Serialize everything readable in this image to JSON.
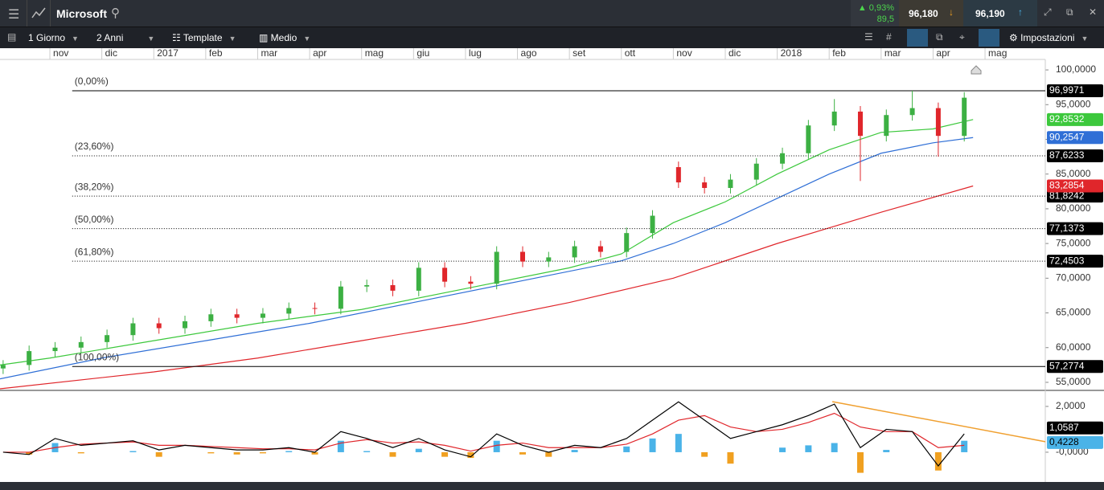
{
  "toolbar": {
    "symbol": "Microsoft",
    "change_pct": "0,93%",
    "change_abs": "89,5",
    "bid": "96,180",
    "ask": "96,190",
    "interval": "1 Giorno",
    "range": "2 Anni",
    "template": "Template",
    "size": "Medio",
    "settings": "Impostazioni"
  },
  "chart_data": {
    "type": "candlestick",
    "xlim": [
      -0.96,
      19.16
    ],
    "xticks": [
      {
        "value": 0,
        "label": "nov"
      },
      {
        "value": 1,
        "label": "dic"
      },
      {
        "value": 2,
        "label": "2017"
      },
      {
        "value": 3,
        "label": "feb"
      },
      {
        "value": 4,
        "label": "mar"
      },
      {
        "value": 5,
        "label": "apr"
      },
      {
        "value": 6,
        "label": "mag"
      },
      {
        "value": 7,
        "label": "giu"
      },
      {
        "value": 8,
        "label": "lug"
      },
      {
        "value": 9,
        "label": "ago"
      },
      {
        "value": 10,
        "label": "set"
      },
      {
        "value": 11,
        "label": "ott"
      },
      {
        "value": 12,
        "label": "nov"
      },
      {
        "value": 13,
        "label": "dic"
      },
      {
        "value": 14,
        "label": "2018"
      },
      {
        "value": 15,
        "label": "feb"
      },
      {
        "value": 16,
        "label": "mar"
      },
      {
        "value": 17,
        "label": "apr"
      },
      {
        "value": 18,
        "label": "mag"
      }
    ],
    "ylim": [
      53.84,
      103.13
    ],
    "yticks": [
      {
        "value": 55,
        "label": "55,0000"
      },
      {
        "value": 60,
        "label": "60,0000"
      },
      {
        "value": 65,
        "label": "65,0000"
      },
      {
        "value": 70,
        "label": "70,0000"
      },
      {
        "value": 75,
        "label": "75,0000"
      },
      {
        "value": 80,
        "label": "80,0000"
      },
      {
        "value": 85,
        "label": "85,0000"
      },
      {
        "value": 90,
        "label": "90,0000"
      },
      {
        "value": 95,
        "label": "95,0000"
      },
      {
        "value": 100,
        "label": "100,0000"
      }
    ],
    "up_color": "#3cb043",
    "down_color": "#e0262b",
    "x": [
      -0.9,
      -0.4,
      0.1,
      0.6,
      1.1,
      1.6,
      2.1,
      2.6,
      3.1,
      3.6,
      4.1,
      4.6,
      5.1,
      5.6,
      6.1,
      6.6,
      7.1,
      7.6,
      8.1,
      8.6,
      9.1,
      9.6,
      10.1,
      10.6,
      11.1,
      11.6,
      12.1,
      12.6,
      13.1,
      13.6,
      14.1,
      14.6,
      15.1,
      15.6,
      16.1,
      16.6,
      17.1,
      17.6
    ],
    "open": [
      57.0,
      57.5,
      59.5,
      60.0,
      60.8,
      61.8,
      63.5,
      62.8,
      63.8,
      64.8,
      64.3,
      64.9,
      65.7,
      65.6,
      68.8,
      69.0,
      68.2,
      71.5,
      69.5,
      69.2,
      73.8,
      72.4,
      73.0,
      74.6,
      73.8,
      76.5,
      86.0,
      83.8,
      83.0,
      84.2,
      86.5,
      88.0,
      92.0,
      94.0,
      90.5,
      93.5,
      94.5,
      90.5
    ],
    "high": [
      58.2,
      60.3,
      60.8,
      61.6,
      62.6,
      64.3,
      64.3,
      64.6,
      65.6,
      65.6,
      65.7,
      66.5,
      66.5,
      69.6,
      69.8,
      69.8,
      72.3,
      72.3,
      70.3,
      74.6,
      74.6,
      73.8,
      75.4,
      75.4,
      77.3,
      79.8,
      86.8,
      84.6,
      85.0,
      87.3,
      88.8,
      92.8,
      95.8,
      94.8,
      94.3,
      97.0,
      95.3,
      96.8
    ],
    "low": [
      56.2,
      56.7,
      58.7,
      59.2,
      60.0,
      61.0,
      62.0,
      62.0,
      63.0,
      63.5,
      63.5,
      64.1,
      64.8,
      64.8,
      68.0,
      67.4,
      67.4,
      68.7,
      68.4,
      68.4,
      71.6,
      71.6,
      72.2,
      73.0,
      73.0,
      75.7,
      83.0,
      82.2,
      82.2,
      83.4,
      85.7,
      87.2,
      91.2,
      84.0,
      89.7,
      92.7,
      87.5,
      89.7
    ],
    "close": [
      57.5,
      59.5,
      60.0,
      60.8,
      61.8,
      63.5,
      62.8,
      63.8,
      64.8,
      64.3,
      64.9,
      65.7,
      65.6,
      68.8,
      69.0,
      68.2,
      71.5,
      69.5,
      69.2,
      73.8,
      72.4,
      73.0,
      74.6,
      73.8,
      76.5,
      79.0,
      83.8,
      83.0,
      84.2,
      86.5,
      88.0,
      92.0,
      94.0,
      90.5,
      93.5,
      94.5,
      90.5,
      96.0
    ],
    "moving_averages": [
      {
        "color": "#3cc83c",
        "x": [
          -0.96,
          0,
          2,
          4,
          6,
          8,
          10,
          11,
          12,
          13,
          14,
          15,
          16,
          17,
          17.77
        ],
        "values": [
          57.5,
          58.5,
          61,
          63.5,
          65.5,
          68.5,
          71.5,
          73.5,
          78,
          81,
          85,
          88.5,
          91,
          91.5,
          92.8532
        ],
        "last": {
          "value": 92.8532,
          "label": "92,8532"
        }
      },
      {
        "color": "#2f6fd6",
        "x": [
          -0.96,
          1,
          3,
          5,
          7,
          9,
          11,
          12,
          13,
          14,
          15,
          16,
          17,
          17.77
        ],
        "values": [
          55.5,
          58.5,
          61,
          63.5,
          66.5,
          69.5,
          72.5,
          75,
          78,
          81.5,
          85,
          88,
          89.5,
          90.2547
        ],
        "last": {
          "value": 90.2547,
          "label": "90,2547"
        }
      },
      {
        "color": "#e0262b",
        "x": [
          -0.96,
          2,
          4,
          6,
          8,
          10,
          12,
          14,
          16,
          17.77
        ],
        "values": [
          54.07,
          56.5,
          58.5,
          61,
          63.5,
          66.5,
          70,
          75,
          79.5,
          83.2854
        ],
        "last": {
          "value": 83.2854,
          "label": "83,2854"
        }
      }
    ],
    "fibonacci": {
      "anchor_x": 0.43,
      "levels": [
        {
          "value": 96.9971,
          "label": "96,9971",
          "level_label": "(0,00%)"
        },
        {
          "value": 87.6233,
          "label": "87,6233",
          "level_label": "(23,60%)"
        },
        {
          "value": 81.8242,
          "label": "81,8242",
          "level_label": "(38,20%)"
        },
        {
          "value": 77.1373,
          "label": "77,1373",
          "level_label": "(50,00%)"
        },
        {
          "value": 72.4503,
          "label": "72,4503",
          "level_label": "(61,80%)"
        },
        {
          "value": 57.2774,
          "label": "57,2774",
          "level_label": "(100,00%)"
        }
      ]
    },
    "macd": {
      "ylim": [
        -1.3,
        2.7
      ],
      "yticks": [
        {
          "value": 0,
          "label": "-0,0000"
        },
        {
          "value": 2,
          "label": "2,0000"
        }
      ],
      "line": [
        0.0,
        -0.1,
        0.6,
        0.3,
        0.4,
        0.5,
        0.1,
        0.3,
        0.2,
        0.1,
        0.1,
        0.2,
        0.0,
        0.9,
        0.6,
        0.2,
        0.6,
        0.1,
        -0.2,
        0.8,
        0.3,
        0.0,
        0.3,
        0.2,
        0.6,
        1.4,
        2.2,
        1.4,
        0.6,
        0.9,
        1.2,
        1.6,
        2.1,
        0.2,
        1.0,
        0.9,
        -0.6,
        0.8
      ],
      "signal": [
        0,
        0,
        0.2,
        0.35,
        0.4,
        0.45,
        0.3,
        0.3,
        0.25,
        0.2,
        0.15,
        0.15,
        0.1,
        0.4,
        0.55,
        0.4,
        0.45,
        0.3,
        0.05,
        0.3,
        0.4,
        0.2,
        0.2,
        0.2,
        0.35,
        0.8,
        1.4,
        1.6,
        1.1,
        0.9,
        1.0,
        1.3,
        1.7,
        1.1,
        0.9,
        0.9,
        0.2,
        0.3
      ],
      "histogram": [
        0,
        -0.1,
        0.4,
        -0.05,
        0,
        0.05,
        -0.2,
        0,
        -0.05,
        -0.1,
        -0.05,
        0.05,
        -0.1,
        0.5,
        0.05,
        -0.2,
        0.15,
        -0.2,
        -0.25,
        0.5,
        -0.1,
        -0.2,
        0.1,
        0,
        0.25,
        0.6,
        0.8,
        -0.2,
        -0.5,
        0,
        0.2,
        0.3,
        0.4,
        -0.9,
        0.1,
        0,
        -0.8,
        0.5
      ],
      "hist_up_color": "#4ab3e8",
      "hist_down_color": "#f0a020",
      "last_line": {
        "value": 1.0587,
        "label": "1,0587"
      },
      "last_histogram": {
        "value": 0.4228,
        "label": "0,4228"
      },
      "trendline": {
        "x": [
          15.06,
          19.16
        ],
        "y": [
          2.21,
          0.46
        ]
      }
    }
  }
}
